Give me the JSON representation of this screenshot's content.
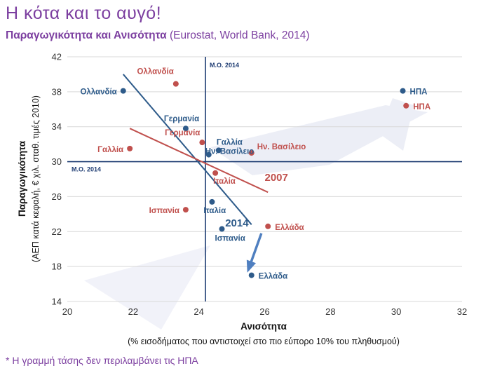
{
  "header": {
    "title": "Η κότα και το αυγό!",
    "subtitle_bold": "Παραγωγικότητα και Ανισότητα",
    "subtitle_rest": " (Eurostat, World Bank, 2014)"
  },
  "footnote": "* Η γραμμή τάσης δεν περιλαμβάνει τις ΗΠΑ",
  "chart_data": {
    "type": "scatter",
    "xlabel": "Ανισότητα",
    "xlabel_sub": "(% εισοδήματος που αντιστοιχεί στο πιο εύπορο 10% του πληθυσμού)",
    "ylabel": "Παραγωγικότητα",
    "ylabel_sub": "(ΑΕΠ κατά κεφαλή, € χιλ. σταθ. τιμές 2010)",
    "xlim": [
      20,
      32
    ],
    "ylim": [
      14,
      42
    ],
    "xticks": [
      "20",
      "22",
      "24",
      "26",
      "28",
      "30",
      "32"
    ],
    "yticks": [
      "14",
      "18",
      "22",
      "26",
      "30",
      "34",
      "38",
      "42"
    ],
    "reference_lines": {
      "x": 24.2,
      "y": 30,
      "x_label": "Μ.Ο. 2014",
      "y_label": "Μ.Ο. 2014"
    },
    "series": [
      {
        "name": "2014",
        "color": "#2e5b8a",
        "points": [
          {
            "label": "Ολλανδία",
            "x": 21.7,
            "y": 38.1
          },
          {
            "label": "Γερμανία",
            "x": 23.6,
            "y": 33.8
          },
          {
            "label": "Γαλλία",
            "x": 24.6,
            "y": 31.3
          },
          {
            "label": "Ην. Βασίλειο",
            "x": 24.3,
            "y": 30.8
          },
          {
            "label": "Ιταλία",
            "x": 24.4,
            "y": 25.4
          },
          {
            "label": "Ισπανία",
            "x": 24.7,
            "y": 22.3
          },
          {
            "label": "Ελλάδα",
            "x": 25.6,
            "y": 17.0
          },
          {
            "label": "ΗΠΑ",
            "x": 30.2,
            "y": 38.1
          }
        ],
        "trend": {
          "label": "2014",
          "from": [
            21.7,
            40.0
          ],
          "to": [
            25.6,
            22.8
          ]
        }
      },
      {
        "name": "2007",
        "color": "#c0504d",
        "points": [
          {
            "label": "Ολλανδία",
            "x": 23.3,
            "y": 38.9
          },
          {
            "label": "Γερμανία",
            "x": 24.1,
            "y": 32.2
          },
          {
            "label": "Γαλλία",
            "x": 21.9,
            "y": 31.5
          },
          {
            "label": "Ην. Βασίλειο",
            "x": 25.6,
            "y": 31.0
          },
          {
            "label": "Ιταλία",
            "x": 24.5,
            "y": 28.7
          },
          {
            "label": "Ισπανία",
            "x": 23.6,
            "y": 24.5
          },
          {
            "label": "Ελλάδα",
            "x": 26.1,
            "y": 22.6
          },
          {
            "label": "ΗΠΑ",
            "x": 30.3,
            "y": 36.4
          }
        ],
        "trend": {
          "label": "2007",
          "from": [
            21.9,
            33.8
          ],
          "to": [
            26.1,
            26.5
          ]
        }
      }
    ],
    "arrow": {
      "from": [
        25.9,
        21.8
      ],
      "to": [
        25.5,
        17.6
      ]
    },
    "colors": {
      "blue": "#2e5b8a",
      "red": "#c0504d",
      "title": "#7c3fa0"
    }
  }
}
